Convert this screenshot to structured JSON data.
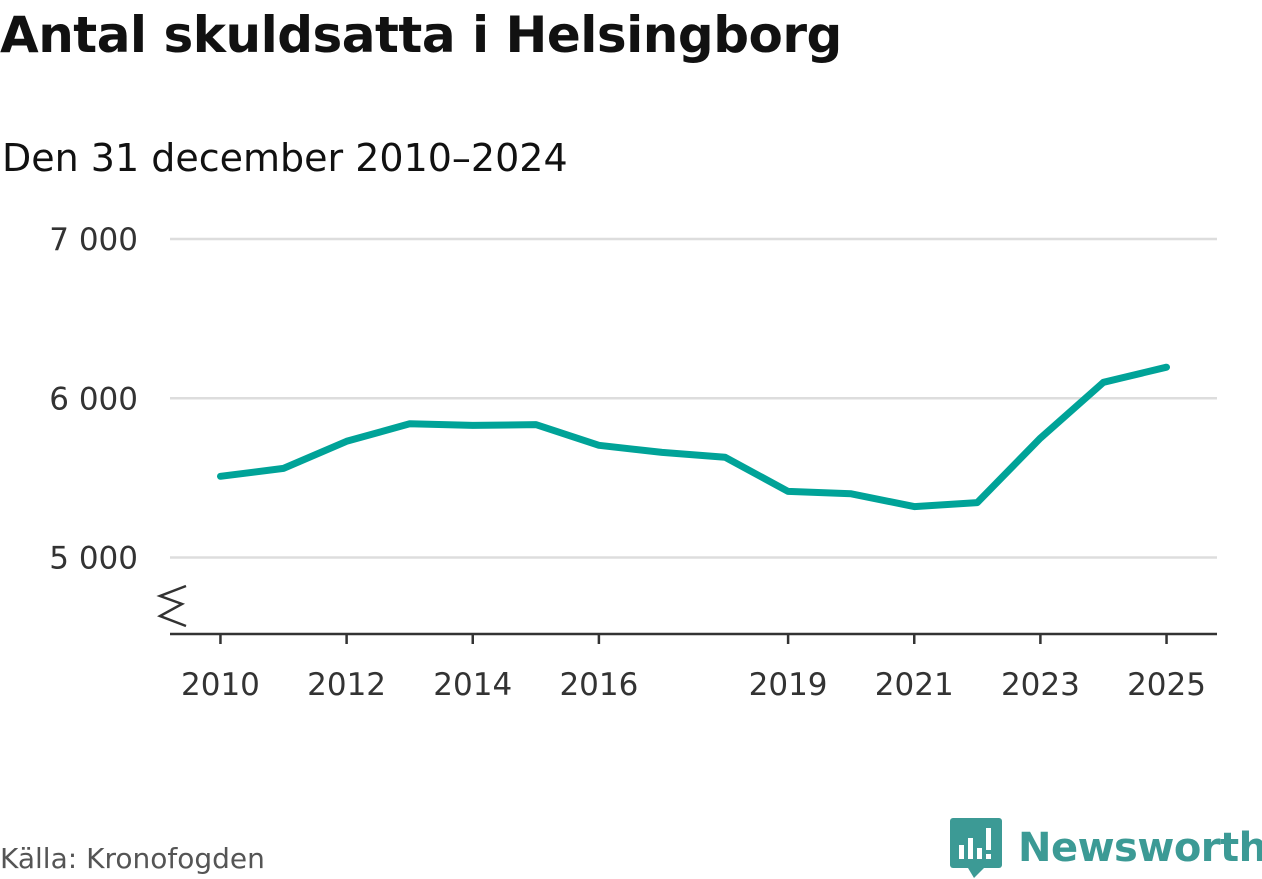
{
  "header": {
    "title": "Antal skuldsatta i Helsingborg",
    "subtitle": "Den 31 december 2010–2024"
  },
  "footer": {
    "source": "Källa: Kronofogden",
    "brand": "Newsworthy",
    "brand_icon": "newsworthy-logo-icon",
    "brand_color": "#3c9a95"
  },
  "chart_data": {
    "type": "line",
    "title": "Antal skuldsatta i Helsingborg",
    "subtitle": "Den 31 december 2010–2024",
    "xlabel": "",
    "ylabel": "",
    "x_tick_labels": [
      "2010",
      "2012",
      "2014",
      "2016",
      "2019",
      "2021",
      "2023",
      "2025"
    ],
    "y_tick_labels": [
      "5 000",
      "6 000",
      "7 000"
    ],
    "y_ticks": [
      5000,
      6000,
      7000
    ],
    "x_ticks": [
      2010,
      2012,
      2014,
      2016,
      2019,
      2021,
      2023,
      2025
    ],
    "xlim": [
      2009.2,
      2025.8
    ],
    "ylim": [
      4520,
      7000
    ],
    "y_axis_break": true,
    "grid": "horizontal",
    "legend": "none",
    "series": [
      {
        "color": "#00a398",
        "x": [
          2010,
          2011,
          2012,
          2013,
          2014,
          2015,
          2016,
          2017,
          2018,
          2019,
          2020,
          2021,
          2022,
          2023,
          2024,
          2025
        ],
        "values": [
          5510,
          5560,
          5730,
          5840,
          5830,
          5835,
          5705,
          5660,
          5630,
          5415,
          5400,
          5320,
          5345,
          5750,
          6100,
          6195
        ]
      }
    ]
  }
}
